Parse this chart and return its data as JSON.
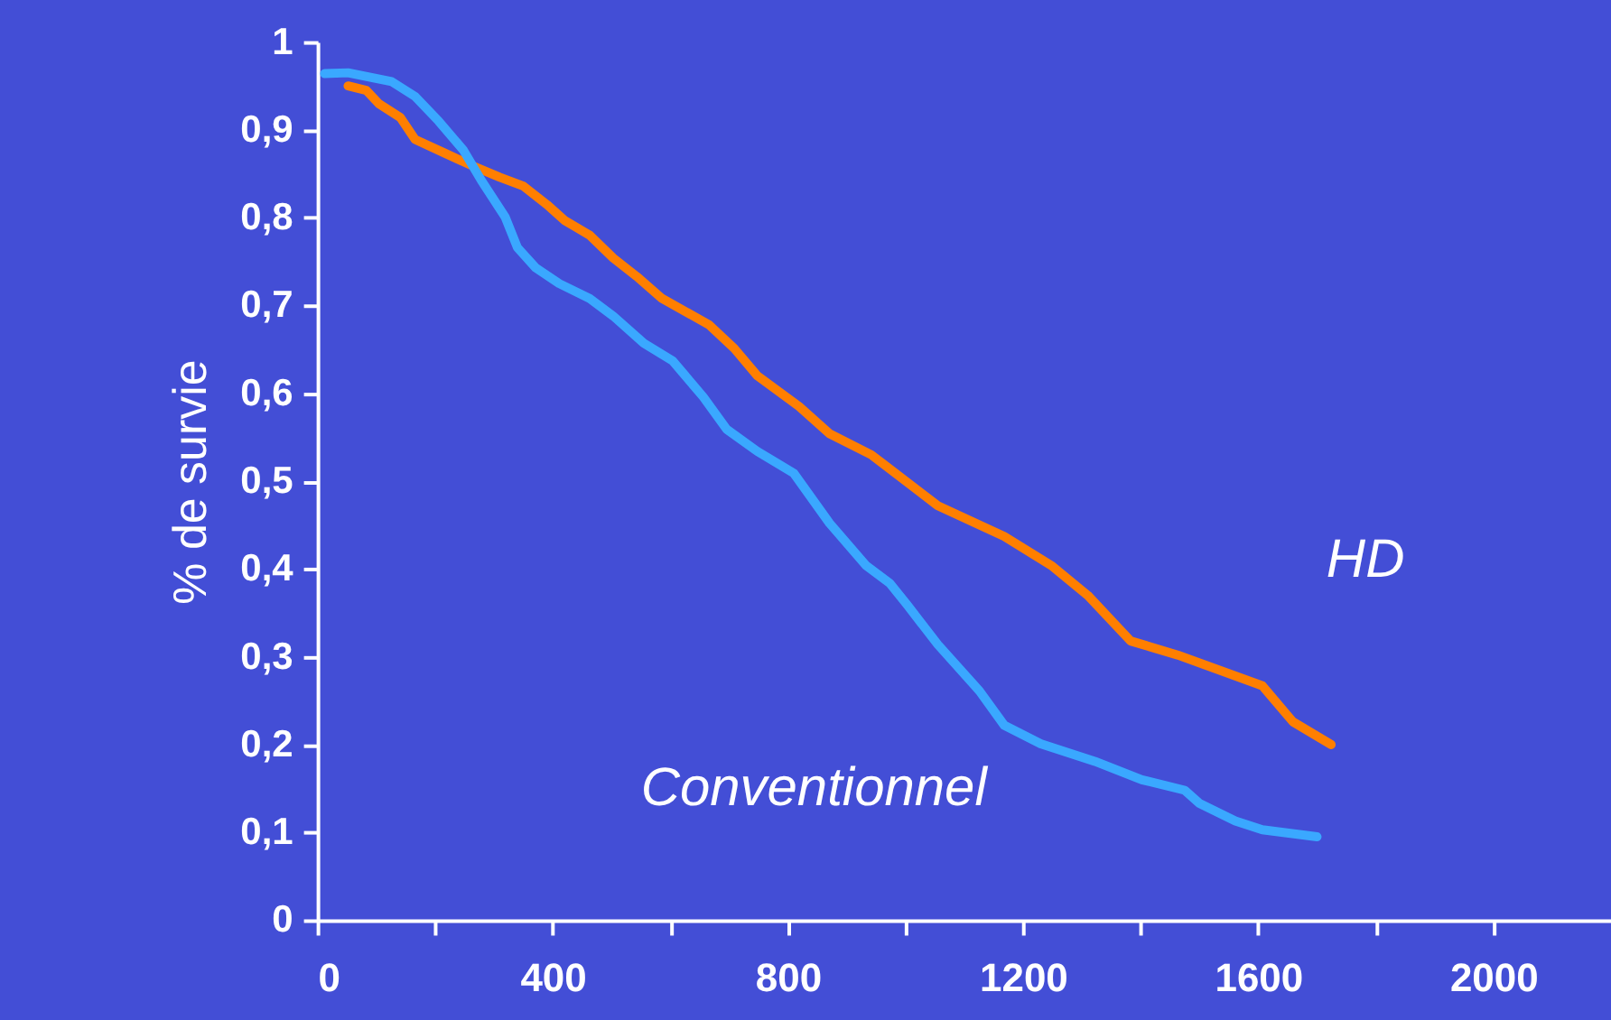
{
  "chart_data": {
    "type": "line",
    "ylabel": "% de survie",
    "xlim": [
      0,
      2200
    ],
    "xticks": [
      0,
      {
        "value": 200,
        "label": null
      },
      400,
      {
        "value": 600,
        "label": null
      },
      800,
      {
        "value": 1000,
        "label": null
      },
      1200,
      {
        "value": 1400,
        "label": null
      },
      1600,
      {
        "value": 1800,
        "label": null
      },
      2000
    ],
    "ylim": [
      0,
      1
    ],
    "yticks": [
      0,
      {
        "value": 0.1,
        "label": "0,1"
      },
      {
        "value": 0.2,
        "label": "0,2"
      },
      {
        "value": 0.3,
        "label": "0,3"
      },
      {
        "value": 0.4,
        "label": "0,4"
      },
      {
        "value": 0.5,
        "label": "0,5"
      },
      {
        "value": 0.6,
        "label": "0,6"
      },
      {
        "value": 0.7,
        "label": "0,7"
      },
      {
        "value": 0.8,
        "label": "0,8"
      },
      {
        "value": 0.9,
        "label": "0,9"
      },
      1
    ],
    "grid": false,
    "legend": false,
    "marker": "none",
    "line_style": "solid",
    "series": [
      {
        "name": "HD",
        "color": "#ff7f00",
        "x": [
          52,
          83,
          104,
          141,
          166,
          218,
          267,
          310,
          350,
          390,
          420,
          463,
          503,
          543,
          586,
          666,
          709,
          748,
          819,
          871,
          942,
          1055,
          1168,
          1248,
          1310,
          1383,
          1463,
          1607,
          1659,
          1724
        ],
        "values": [
          0.95,
          0.945,
          0.93,
          0.914,
          0.889,
          0.873,
          0.858,
          0.846,
          0.836,
          0.815,
          0.797,
          0.78,
          0.754,
          0.733,
          0.708,
          0.678,
          0.651,
          0.62,
          0.585,
          0.554,
          0.53,
          0.472,
          0.437,
          0.404,
          0.37,
          0.318,
          0.302,
          0.267,
          0.226,
          0.2
        ]
      },
      {
        "name": "Conventionnel",
        "color": "#3aa8ff",
        "x": [
          12,
          52,
          126,
          166,
          206,
          248,
          279,
          319,
          340,
          371,
          411,
          463,
          503,
          555,
          604,
          656,
          696,
          748,
          810,
          871,
          933,
          973,
          1003,
          1055,
          1126,
          1168,
          1230,
          1322,
          1402,
          1475,
          1500,
          1561,
          1607,
          1700
        ],
        "values": [
          0.964,
          0.965,
          0.955,
          0.938,
          0.91,
          0.877,
          0.842,
          0.801,
          0.766,
          0.743,
          0.725,
          0.708,
          0.688,
          0.657,
          0.637,
          0.596,
          0.559,
          0.534,
          0.509,
          0.452,
          0.404,
          0.384,
          0.359,
          0.314,
          0.261,
          0.222,
          0.201,
          0.181,
          0.16,
          0.148,
          0.133,
          0.113,
          0.103,
          0.095
        ]
      }
    ]
  }
}
